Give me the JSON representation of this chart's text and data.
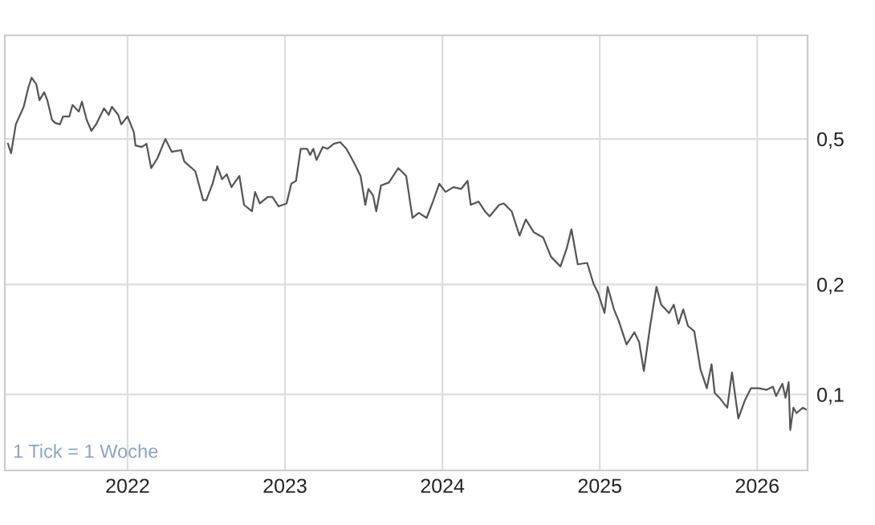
{
  "chart_data": {
    "type": "line",
    "log": "y",
    "grid": true,
    "marker": "none",
    "line_style": "solid",
    "xlim": [
      2021.22,
      2026.32
    ],
    "xticks": [
      2022,
      2023,
      2024,
      2025,
      2026
    ],
    "ylim": [
      0.062,
      0.96
    ],
    "yticks": [
      {
        "value": 0.1,
        "label": "0,1"
      },
      {
        "value": 0.2,
        "label": "0,2"
      },
      {
        "value": 0.5,
        "label": "0,5"
      }
    ],
    "annotations": [
      "1 Tick = 1 Woche"
    ],
    "series": [
      {
        "color": "#555555",
        "x": [
          2021.24,
          2021.26,
          2021.29,
          2021.34,
          2021.37,
          2021.39,
          2021.42,
          2021.44,
          2021.47,
          2021.49,
          2021.52,
          2021.54,
          2021.57,
          2021.59,
          2021.63,
          2021.65,
          2021.69,
          2021.71,
          2021.74,
          2021.77,
          2021.8,
          2021.85,
          2021.88,
          2021.9,
          2021.94,
          2021.96,
          2022.0,
          2022.04,
          2022.05,
          2022.09,
          2022.12,
          2022.15,
          2022.19,
          2022.24,
          2022.28,
          2022.34,
          2022.36,
          2022.43,
          2022.48,
          2022.5,
          2022.54,
          2022.57,
          2022.6,
          2022.63,
          2022.66,
          2022.71,
          2022.74,
          2022.79,
          2022.81,
          2022.84,
          2022.89,
          2022.92,
          2022.96,
          2023.01,
          2023.04,
          2023.07,
          2023.1,
          2023.14,
          2023.16,
          2023.18,
          2023.2,
          2023.24,
          2023.27,
          2023.31,
          2023.35,
          2023.39,
          2023.44,
          2023.48,
          2023.51,
          2023.53,
          2023.56,
          2023.58,
          2023.61,
          2023.66,
          2023.72,
          2023.77,
          2023.81,
          2023.85,
          2023.9,
          2023.94,
          2023.98,
          2024.02,
          2024.07,
          2024.12,
          2024.16,
          2024.18,
          2024.23,
          2024.27,
          2024.3,
          2024.36,
          2024.39,
          2024.44,
          2024.49,
          2024.53,
          2024.58,
          2024.64,
          2024.69,
          2024.75,
          2024.79,
          2024.82,
          2024.86,
          2024.92,
          2024.96,
          2024.99,
          2025.03,
          2025.05,
          2025.09,
          2025.12,
          2025.17,
          2025.22,
          2025.25,
          2025.28,
          2025.32,
          2025.36,
          2025.39,
          2025.44,
          2025.47,
          2025.5,
          2025.53,
          2025.56,
          2025.6,
          2025.64,
          2025.68,
          2025.71,
          2025.73,
          2025.76,
          2025.81,
          2025.84,
          2025.88,
          2025.92,
          2025.96,
          2026.01,
          2026.06,
          2026.1,
          2026.12,
          2026.16,
          2026.18,
          2026.2,
          2026.21,
          2026.23,
          2026.25,
          2026.29,
          2026.31
        ],
        "values": [
          0.485,
          0.457,
          0.548,
          0.612,
          0.692,
          0.735,
          0.706,
          0.638,
          0.671,
          0.638,
          0.564,
          0.553,
          0.548,
          0.576,
          0.576,
          0.619,
          0.594,
          0.632,
          0.564,
          0.526,
          0.548,
          0.606,
          0.582,
          0.612,
          0.582,
          0.548,
          0.576,
          0.521,
          0.48,
          0.475,
          0.485,
          0.416,
          0.443,
          0.5,
          0.461,
          0.466,
          0.434,
          0.408,
          0.34,
          0.34,
          0.377,
          0.421,
          0.388,
          0.4,
          0.369,
          0.396,
          0.33,
          0.317,
          0.358,
          0.333,
          0.347,
          0.347,
          0.327,
          0.333,
          0.377,
          0.384,
          0.47,
          0.47,
          0.452,
          0.47,
          0.438,
          0.475,
          0.47,
          0.485,
          0.49,
          0.47,
          0.429,
          0.396,
          0.33,
          0.365,
          0.35,
          0.317,
          0.373,
          0.38,
          0.416,
          0.396,
          0.304,
          0.314,
          0.304,
          0.337,
          0.377,
          0.358,
          0.369,
          0.365,
          0.384,
          0.33,
          0.337,
          0.317,
          0.307,
          0.33,
          0.333,
          0.317,
          0.272,
          0.301,
          0.278,
          0.269,
          0.238,
          0.224,
          0.251,
          0.283,
          0.227,
          0.229,
          0.201,
          0.189,
          0.167,
          0.197,
          0.171,
          0.159,
          0.137,
          0.148,
          0.139,
          0.116,
          0.154,
          0.197,
          0.176,
          0.167,
          0.176,
          0.156,
          0.171,
          0.154,
          0.149,
          0.117,
          0.104,
          0.121,
          0.101,
          0.098,
          0.092,
          0.115,
          0.086,
          0.096,
          0.104,
          0.104,
          0.103,
          0.105,
          0.099,
          0.107,
          0.098,
          0.108,
          0.08,
          0.092,
          0.089,
          0.092,
          0.091
        ]
      }
    ]
  }
}
